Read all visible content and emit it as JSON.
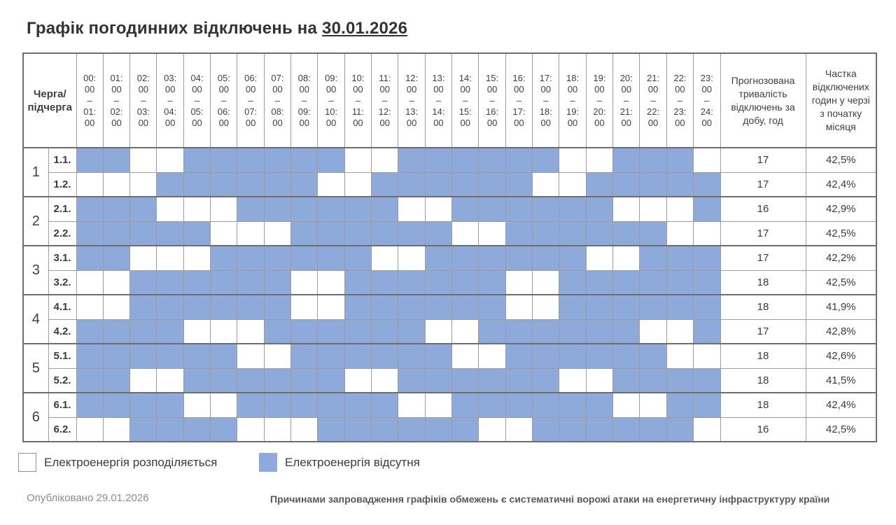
{
  "title": {
    "text": "Графік погодинних відключень на",
    "date": "30.01.2026"
  },
  "table": {
    "corner_header": "Черга/\nпідчерга",
    "duration_header": "Прогнозована тривалість відключень за добу, год",
    "share_header": "Частка відключених годин у черзі з початку місяця",
    "time_slots": [
      [
        "00:00",
        "01:00"
      ],
      [
        "01:00",
        "02:00"
      ],
      [
        "02:00",
        "03:00"
      ],
      [
        "03:00",
        "04:00"
      ],
      [
        "04:00",
        "05:00"
      ],
      [
        "05:00",
        "06:00"
      ],
      [
        "06:00",
        "07:00"
      ],
      [
        "07:00",
        "08:00"
      ],
      [
        "08:00",
        "09:00"
      ],
      [
        "09:00",
        "10:00"
      ],
      [
        "10:00",
        "11:00"
      ],
      [
        "11:00",
        "12:00"
      ],
      [
        "12:00",
        "13:00"
      ],
      [
        "13:00",
        "14:00"
      ],
      [
        "14:00",
        "15:00"
      ],
      [
        "15:00",
        "16:00"
      ],
      [
        "16:00",
        "17:00"
      ],
      [
        "17:00",
        "18:00"
      ],
      [
        "18:00",
        "19:00"
      ],
      [
        "19:00",
        "20:00"
      ],
      [
        "20:00",
        "21:00"
      ],
      [
        "21:00",
        "22:00"
      ],
      [
        "22:00",
        "23:00"
      ],
      [
        "23:00",
        "24:00"
      ]
    ],
    "groups": [
      {
        "queue": "1",
        "subqueues": [
          {
            "label": "1.1.",
            "outages": [
              1,
              1,
              0,
              0,
              1,
              1,
              1,
              1,
              1,
              1,
              0,
              0,
              1,
              1,
              1,
              1,
              1,
              1,
              0,
              0,
              1,
              1,
              1,
              0
            ],
            "duration": "17",
            "share": "42,5%"
          },
          {
            "label": "1.2.",
            "outages": [
              0,
              0,
              0,
              1,
              1,
              1,
              1,
              1,
              1,
              0,
              0,
              1,
              1,
              1,
              1,
              1,
              1,
              0,
              0,
              1,
              1,
              1,
              1,
              1
            ],
            "duration": "17",
            "share": "42,4%"
          }
        ]
      },
      {
        "queue": "2",
        "subqueues": [
          {
            "label": "2.1.",
            "outages": [
              1,
              1,
              1,
              0,
              0,
              0,
              1,
              1,
              1,
              1,
              1,
              1,
              0,
              0,
              1,
              1,
              1,
              1,
              1,
              1,
              0,
              0,
              0,
              1
            ],
            "duration": "16",
            "share": "42,9%"
          },
          {
            "label": "2.2.",
            "outages": [
              1,
              1,
              1,
              1,
              1,
              0,
              0,
              0,
              1,
              1,
              1,
              1,
              1,
              1,
              0,
              0,
              1,
              1,
              1,
              1,
              1,
              1,
              0,
              0
            ],
            "duration": "17",
            "share": "42,5%"
          }
        ]
      },
      {
        "queue": "3",
        "subqueues": [
          {
            "label": "3.1.",
            "outages": [
              1,
              1,
              0,
              0,
              0,
              1,
              1,
              1,
              1,
              1,
              1,
              0,
              0,
              1,
              1,
              1,
              1,
              1,
              1,
              0,
              0,
              1,
              1,
              1
            ],
            "duration": "17",
            "share": "42,2%"
          },
          {
            "label": "3.2.",
            "outages": [
              0,
              0,
              1,
              1,
              1,
              1,
              1,
              1,
              0,
              0,
              1,
              1,
              1,
              1,
              1,
              1,
              0,
              0,
              1,
              1,
              1,
              1,
              1,
              1
            ],
            "duration": "18",
            "share": "42,5%"
          }
        ]
      },
      {
        "queue": "4",
        "subqueues": [
          {
            "label": "4.1.",
            "outages": [
              0,
              0,
              1,
              1,
              1,
              1,
              1,
              1,
              0,
              0,
              1,
              1,
              1,
              1,
              1,
              1,
              0,
              0,
              1,
              1,
              1,
              1,
              1,
              1
            ],
            "duration": "18",
            "share": "41,9%"
          },
          {
            "label": "4.2.",
            "outages": [
              1,
              1,
              1,
              1,
              0,
              0,
              0,
              1,
              1,
              1,
              1,
              1,
              1,
              0,
              0,
              1,
              1,
              1,
              1,
              1,
              1,
              0,
              0,
              1
            ],
            "duration": "17",
            "share": "42,8%"
          }
        ]
      },
      {
        "queue": "5",
        "subqueues": [
          {
            "label": "5.1.",
            "outages": [
              1,
              1,
              1,
              1,
              1,
              1,
              0,
              0,
              1,
              1,
              1,
              1,
              1,
              1,
              0,
              0,
              1,
              1,
              1,
              1,
              1,
              1,
              0,
              0
            ],
            "duration": "18",
            "share": "42,6%"
          },
          {
            "label": "5.2.",
            "outages": [
              1,
              1,
              0,
              0,
              1,
              1,
              1,
              1,
              1,
              1,
              0,
              0,
              1,
              1,
              1,
              1,
              1,
              1,
              0,
              0,
              1,
              1,
              1,
              1
            ],
            "duration": "18",
            "share": "41,5%"
          }
        ]
      },
      {
        "queue": "6",
        "subqueues": [
          {
            "label": "6.1.",
            "outages": [
              1,
              1,
              1,
              1,
              0,
              0,
              1,
              1,
              1,
              1,
              1,
              1,
              0,
              0,
              1,
              1,
              1,
              1,
              1,
              1,
              0,
              0,
              1,
              1
            ],
            "duration": "18",
            "share": "42,4%"
          },
          {
            "label": "6.2.",
            "outages": [
              0,
              0,
              1,
              1,
              1,
              1,
              0,
              0,
              0,
              1,
              1,
              1,
              1,
              1,
              1,
              0,
              0,
              1,
              1,
              1,
              1,
              1,
              1,
              0
            ],
            "duration": "16",
            "share": "42,5%"
          }
        ]
      }
    ]
  },
  "legend": {
    "available": "Електроенергія розподіляється",
    "outage": "Електроенергія відсутня"
  },
  "footer": {
    "published": "Опубліковано 29.01.2026",
    "reason": "Причинами запровадження графіків обмежень є систематичні ворожі атаки на енергетичну інфраструктуру країни"
  },
  "colors": {
    "outage_fill": "#8EAADB",
    "grid_line": "#9c9c9c",
    "group_line": "#6e6e6e",
    "text_dark": "#3b3b3b",
    "text_grey": "#8c8c8c"
  },
  "chart_data": {
    "type": "heatmap",
    "title": "Графік погодинних відключень на 30.01.2026",
    "x_labels": [
      "00:00–01:00",
      "01:00–02:00",
      "02:00–03:00",
      "03:00–04:00",
      "04:00–05:00",
      "05:00–06:00",
      "06:00–07:00",
      "07:00–08:00",
      "08:00–09:00",
      "09:00–10:00",
      "10:00–11:00",
      "11:00–12:00",
      "12:00–13:00",
      "13:00–14:00",
      "14:00–15:00",
      "15:00–16:00",
      "16:00–17:00",
      "17:00–18:00",
      "18:00–19:00",
      "19:00–20:00",
      "20:00–21:00",
      "21:00–22:00",
      "22:00–23:00",
      "23:00–24:00"
    ],
    "y_labels": [
      "1.1.",
      "1.2.",
      "2.1.",
      "2.2.",
      "3.1.",
      "3.2.",
      "4.1.",
      "4.2.",
      "5.1.",
      "5.2.",
      "6.1.",
      "6.2."
    ],
    "values": [
      [
        1,
        1,
        0,
        0,
        1,
        1,
        1,
        1,
        1,
        1,
        0,
        0,
        1,
        1,
        1,
        1,
        1,
        1,
        0,
        0,
        1,
        1,
        1,
        0
      ],
      [
        0,
        0,
        0,
        1,
        1,
        1,
        1,
        1,
        1,
        0,
        0,
        1,
        1,
        1,
        1,
        1,
        1,
        0,
        0,
        1,
        1,
        1,
        1,
        1
      ],
      [
        1,
        1,
        1,
        0,
        0,
        0,
        1,
        1,
        1,
        1,
        1,
        1,
        0,
        0,
        1,
        1,
        1,
        1,
        1,
        1,
        0,
        0,
        0,
        1
      ],
      [
        1,
        1,
        1,
        1,
        1,
        0,
        0,
        0,
        1,
        1,
        1,
        1,
        1,
        1,
        0,
        0,
        1,
        1,
        1,
        1,
        1,
        1,
        0,
        0
      ],
      [
        1,
        1,
        0,
        0,
        0,
        1,
        1,
        1,
        1,
        1,
        1,
        0,
        0,
        1,
        1,
        1,
        1,
        1,
        1,
        0,
        0,
        1,
        1,
        1
      ],
      [
        0,
        0,
        1,
        1,
        1,
        1,
        1,
        1,
        0,
        0,
        1,
        1,
        1,
        1,
        1,
        1,
        0,
        0,
        1,
        1,
        1,
        1,
        1,
        1
      ],
      [
        0,
        0,
        1,
        1,
        1,
        1,
        1,
        1,
        0,
        0,
        1,
        1,
        1,
        1,
        1,
        1,
        0,
        0,
        1,
        1,
        1,
        1,
        1,
        1
      ],
      [
        1,
        1,
        1,
        1,
        0,
        0,
        0,
        1,
        1,
        1,
        1,
        1,
        1,
        0,
        0,
        1,
        1,
        1,
        1,
        1,
        1,
        0,
        0,
        1
      ],
      [
        1,
        1,
        1,
        1,
        1,
        1,
        0,
        0,
        1,
        1,
        1,
        1,
        1,
        1,
        0,
        0,
        1,
        1,
        1,
        1,
        1,
        1,
        0,
        0
      ],
      [
        1,
        1,
        0,
        0,
        1,
        1,
        1,
        1,
        1,
        1,
        0,
        0,
        1,
        1,
        1,
        1,
        1,
        1,
        0,
        0,
        1,
        1,
        1,
        1
      ],
      [
        1,
        1,
        1,
        1,
        0,
        0,
        1,
        1,
        1,
        1,
        1,
        1,
        0,
        0,
        1,
        1,
        1,
        1,
        1,
        1,
        0,
        0,
        1,
        1
      ],
      [
        0,
        0,
        1,
        1,
        1,
        1,
        0,
        0,
        0,
        1,
        1,
        1,
        1,
        1,
        1,
        0,
        0,
        1,
        1,
        1,
        1,
        1,
        1,
        0
      ]
    ],
    "value_legend": {
      "0": "Електроенергія розподіляється",
      "1": "Електроенергія відсутня"
    },
    "daily_outage_hours": [
      17,
      17,
      16,
      17,
      17,
      18,
      18,
      17,
      18,
      18,
      18,
      16
    ],
    "month_share_percent": [
      "42,5%",
      "42,4%",
      "42,9%",
      "42,5%",
      "42,2%",
      "42,5%",
      "41,9%",
      "42,8%",
      "42,6%",
      "41,5%",
      "42,4%",
      "42,5%"
    ]
  }
}
